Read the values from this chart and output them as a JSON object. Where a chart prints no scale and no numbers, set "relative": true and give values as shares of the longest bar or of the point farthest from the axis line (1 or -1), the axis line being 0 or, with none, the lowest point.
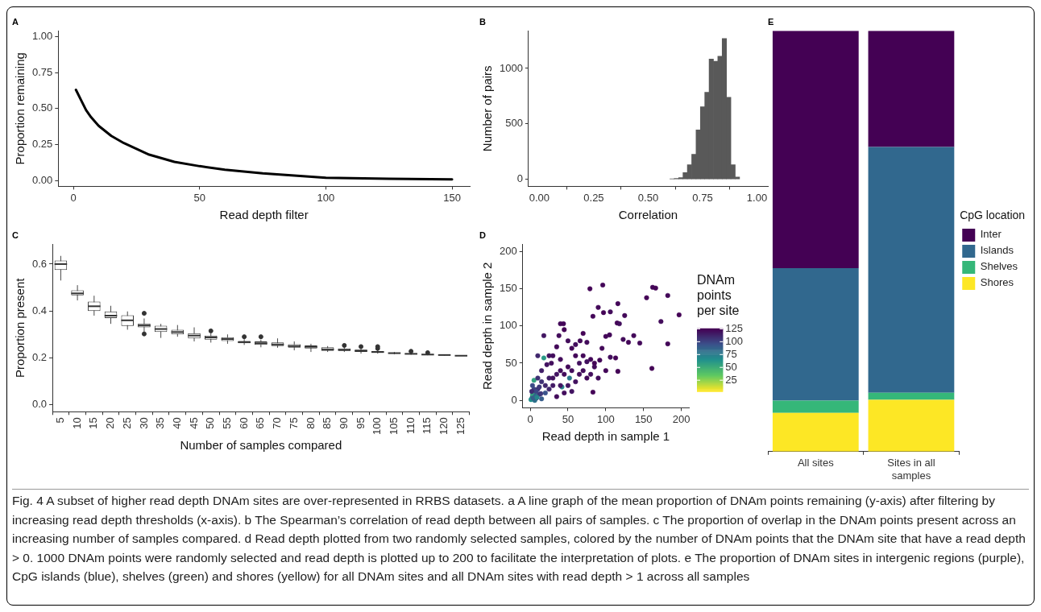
{
  "chart_data": [
    {
      "type": "line",
      "title": "A",
      "xlabel": "Read depth filter",
      "ylabel": "Proportion remaining",
      "x": [
        1,
        3,
        5,
        7,
        10,
        15,
        20,
        25,
        30,
        40,
        50,
        60,
        75,
        100,
        125,
        150
      ],
      "series": [
        {
          "color": "#000000",
          "values": [
            0.63,
            0.56,
            0.49,
            0.44,
            0.38,
            0.31,
            0.26,
            0.22,
            0.18,
            0.13,
            0.1,
            0.075,
            0.05,
            0.02,
            0.012,
            0.008
          ]
        }
      ],
      "xlim": [
        -6,
        157
      ],
      "xticks": [
        0,
        50,
        100,
        150
      ],
      "ylim": [
        -0.04,
        1.04
      ],
      "yticks": [
        {
          "value": 0,
          "label": "0.00"
        },
        {
          "value": 0.25,
          "label": "0.25"
        },
        {
          "value": 0.5,
          "label": "0.50"
        },
        {
          "value": 0.75,
          "label": "0.75"
        },
        {
          "value": 1,
          "label": "1.00"
        }
      ],
      "marker": "none",
      "line_style": "solid"
    },
    {
      "type": "histogram",
      "title": "B",
      "xlabel": "Correlation",
      "ylabel": "Number of pairs",
      "color": "#595959",
      "bins": [
        0.6,
        0.62,
        0.64,
        0.66,
        0.68,
        0.7,
        0.72,
        0.74,
        0.76,
        0.78,
        0.8,
        0.82,
        0.84,
        0.86,
        0.88,
        0.9,
        0.92
      ],
      "values": [
        3,
        8,
        15,
        60,
        130,
        225,
        445,
        655,
        785,
        1085,
        1065,
        1110,
        1270,
        740,
        130,
        20
      ],
      "xlim": [
        -0.05,
        1.05
      ],
      "xticks": [
        {
          "value": 0,
          "label": "0.00"
        },
        {
          "value": 0.25,
          "label": "0.25"
        },
        {
          "value": 0.5,
          "label": "0.50"
        },
        {
          "value": 0.75,
          "label": "0.75"
        },
        {
          "value": 1,
          "label": "1.00"
        }
      ],
      "ylim": [
        -64,
        1340
      ],
      "yticks": [
        0,
        500,
        1000
      ]
    },
    {
      "type": "box",
      "title": "C",
      "xlabel": "Number of samples compared",
      "ylabel": "Proportion present",
      "color": "#333333",
      "categories": [
        "5",
        "10",
        "15",
        "20",
        "25",
        "30",
        "35",
        "40",
        "45",
        "50",
        "55",
        "60",
        "65",
        "70",
        "75",
        "80",
        "85",
        "90",
        "95",
        "100",
        "105",
        "110",
        "115",
        "120",
        "125"
      ],
      "boxes": [
        {
          "low": 0.53,
          "q1": 0.575,
          "median": 0.6,
          "q3": 0.615,
          "high": 0.635
        },
        {
          "low": 0.445,
          "q1": 0.467,
          "median": 0.475,
          "q3": 0.488,
          "high": 0.51
        },
        {
          "low": 0.38,
          "q1": 0.4,
          "median": 0.42,
          "q3": 0.44,
          "high": 0.465
        },
        {
          "low": 0.345,
          "q1": 0.37,
          "median": 0.38,
          "q3": 0.398,
          "high": 0.422
        },
        {
          "low": 0.32,
          "q1": 0.336,
          "median": 0.36,
          "q3": 0.382,
          "high": 0.398
        },
        {
          "low": 0.31,
          "q1": 0.33,
          "median": 0.338,
          "q3": 0.346,
          "high": 0.368,
          "outliers": [
            0.39,
            0.302
          ]
        },
        {
          "low": 0.285,
          "q1": 0.31,
          "median": 0.323,
          "q3": 0.337,
          "high": 0.345
        },
        {
          "low": 0.29,
          "q1": 0.3,
          "median": 0.31,
          "q3": 0.32,
          "high": 0.34
        },
        {
          "low": 0.27,
          "q1": 0.283,
          "median": 0.295,
          "q3": 0.305,
          "high": 0.33
        },
        {
          "low": 0.265,
          "q1": 0.278,
          "median": 0.287,
          "q3": 0.295,
          "high": 0.305,
          "outliers": [
            0.315
          ]
        },
        {
          "low": 0.26,
          "q1": 0.272,
          "median": 0.28,
          "q3": 0.288,
          "high": 0.3
        },
        {
          "low": 0.255,
          "q1": 0.262,
          "median": 0.267,
          "q3": 0.272,
          "high": 0.28,
          "outliers": [
            0.29
          ]
        },
        {
          "low": 0.245,
          "q1": 0.255,
          "median": 0.262,
          "q3": 0.27,
          "high": 0.278,
          "outliers": [
            0.29
          ]
        },
        {
          "low": 0.243,
          "q1": 0.25,
          "median": 0.257,
          "q3": 0.266,
          "high": 0.283
        },
        {
          "low": 0.232,
          "q1": 0.243,
          "median": 0.25,
          "q3": 0.258,
          "high": 0.27
        },
        {
          "low": 0.225,
          "q1": 0.24,
          "median": 0.247,
          "q3": 0.253,
          "high": 0.26
        },
        {
          "low": 0.225,
          "q1": 0.23,
          "median": 0.236,
          "q3": 0.245,
          "high": 0.25
        },
        {
          "low": 0.225,
          "q1": 0.23,
          "median": 0.234,
          "q3": 0.24,
          "high": 0.245,
          "outliers": [
            0.253
          ]
        },
        {
          "low": 0.218,
          "q1": 0.225,
          "median": 0.23,
          "q3": 0.235,
          "high": 0.24,
          "outliers": [
            0.248
          ]
        },
        {
          "low": 0.218,
          "q1": 0.221,
          "median": 0.225,
          "q3": 0.229,
          "high": 0.235,
          "outliers": [
            0.24,
            0.248
          ]
        },
        {
          "low": 0.215,
          "q1": 0.218,
          "median": 0.22,
          "q3": 0.222,
          "high": 0.225
        },
        {
          "low": 0.213,
          "q1": 0.215,
          "median": 0.217,
          "q3": 0.219,
          "high": 0.222,
          "outliers": [
            0.228
          ]
        },
        {
          "low": 0.211,
          "q1": 0.213,
          "median": 0.214,
          "q3": 0.216,
          "high": 0.218,
          "outliers": [
            0.222
          ]
        },
        {
          "low": 0.21,
          "q1": 0.211,
          "median": 0.212,
          "q3": 0.213,
          "high": 0.215
        },
        {
          "low": 0.209,
          "q1": 0.209,
          "median": 0.209,
          "q3": 0.209,
          "high": 0.209
        }
      ],
      "ylim": [
        -0.03,
        0.685
      ],
      "yticks": [
        {
          "value": 0,
          "label": "0.0"
        },
        0.2,
        0.4,
        0.6
      ]
    },
    {
      "type": "scatter",
      "title": "D",
      "xlabel": "Read depth in sample 1",
      "ylabel": "Read depth in sample 2",
      "clabel": "DNAm points per site",
      "marker": "circle",
      "x": [
        79,
        96,
        90,
        97,
        106,
        116,
        125,
        115,
        118,
        83,
        154,
        162,
        166,
        182,
        197,
        173,
        182,
        161,
        145,
        130,
        137,
        116,
        123,
        100,
        105,
        113,
        106,
        92,
        95,
        85,
        80,
        75,
        70,
        66,
        60,
        55,
        50,
        45,
        40,
        44,
        38,
        18,
        35,
        30,
        25,
        10,
        18,
        22,
        28,
        40,
        50,
        55,
        60,
        65,
        70,
        75,
        80,
        83,
        90,
        100,
        60,
        50,
        45,
        55,
        35,
        30,
        25,
        20,
        15,
        10,
        5,
        3,
        2,
        8,
        12,
        5,
        3,
        40,
        35,
        30,
        45,
        42,
        52,
        6,
        15,
        20,
        25,
        10,
        15,
        5,
        3,
        8,
        12,
        40,
        65,
        70,
        75,
        85,
        1,
        4,
        7,
        2,
        9,
        14
      ],
      "values": [
        150,
        155,
        125,
        118,
        119,
        130,
        114,
        104,
        103,
        113,
        138,
        152,
        151,
        141,
        115,
        106,
        76,
        43,
        77,
        78,
        87,
        39,
        82,
        86,
        88,
        57,
        58,
        54,
        70,
        50,
        55,
        78,
        90,
        80,
        75,
        70,
        80,
        95,
        103,
        103,
        87,
        87,
        72,
        60,
        60,
        60,
        57,
        48,
        50,
        55,
        45,
        40,
        60,
        50,
        40,
        30,
        35,
        11,
        30,
        40,
        25,
        20,
        10,
        12,
        5,
        20,
        30,
        20,
        25,
        15,
        10,
        5,
        2,
        3,
        8,
        27,
        8,
        40,
        35,
        30,
        35,
        18,
        30,
        0,
        2,
        10,
        15,
        30,
        40,
        15,
        20,
        12,
        18,
        20,
        35,
        60,
        52,
        45,
        1,
        3,
        6,
        12,
        4,
        9
      ],
      "cvalues": [
        125,
        124,
        123,
        125,
        122,
        124,
        123,
        125,
        121,
        124,
        125,
        124,
        125,
        123,
        125,
        122,
        124,
        125,
        123,
        124,
        123,
        125,
        122,
        124,
        123,
        125,
        121,
        124,
        123,
        125,
        124,
        122,
        125,
        123,
        121,
        124,
        122,
        125,
        123,
        124,
        122,
        118,
        123,
        121,
        120,
        112,
        60,
        119,
        121,
        122,
        123,
        121,
        124,
        120,
        122,
        123,
        121,
        125,
        122,
        124,
        120,
        118,
        121,
        119,
        122,
        117,
        115,
        112,
        108,
        110,
        105,
        100,
        95,
        110,
        108,
        55,
        55,
        121,
        119,
        120,
        122,
        70,
        75,
        80,
        90,
        95,
        112,
        108,
        115,
        102,
        98,
        100,
        105,
        118,
        121,
        123,
        120,
        122,
        65,
        90,
        85,
        110,
        70,
        105
      ],
      "xlim": [
        -10,
        210
      ],
      "xticks": [
        0,
        50,
        100,
        150,
        200
      ],
      "ylim": [
        -10,
        210
      ],
      "yticks": [
        0,
        50,
        100,
        150,
        200
      ],
      "clim": [
        3,
        126
      ],
      "cticks": [
        25,
        50,
        75,
        100,
        125
      ]
    },
    {
      "type": "bar",
      "title": "E",
      "relative": true,
      "stacked": true,
      "legend": "right",
      "legend_title": "CpG location",
      "categories": [
        "All sites",
        "Sites in all samples"
      ],
      "series": [
        {
          "name": "Shores",
          "color": "#fde725",
          "values": [
            0.092,
            0.123
          ]
        },
        {
          "name": "Shelves",
          "color": "#35b779",
          "values": [
            0.029,
            0.017
          ]
        },
        {
          "name": "Islands",
          "color": "#31688e",
          "values": [
            0.315,
            0.584
          ]
        },
        {
          "name": "Inter",
          "color": "#440154",
          "values": [
            0.564,
            0.276
          ]
        }
      ],
      "annotations": [
        "Fig. 4 A subset of higher read depth DNAm sites are over-represented in RRBS datasets. a A line graph of the mean proportion of DNAm points remaining (y-axis) after filtering by increasing read depth thresholds (x-axis). b The Spearman’s correlation of read depth between all pairs of samples. c The proportion of overlap in the DNAm points present across an increasing number of samples compared. d Read depth plotted from two randomly selected samples, colored by the number of DNAm points that the DNAm site that have a read depth > 0. 1000 DNAm points were randomly selected and read depth is plotted up to 200 to facilitate the interpretation of plots. e The proportion of DNAm sites in intergenic regions (purple), CpG islands (blue), shelves (green) and shores (yellow) for all DNAm sites and all DNAm sites with read depth > 1 across all samples"
      ]
    }
  ]
}
